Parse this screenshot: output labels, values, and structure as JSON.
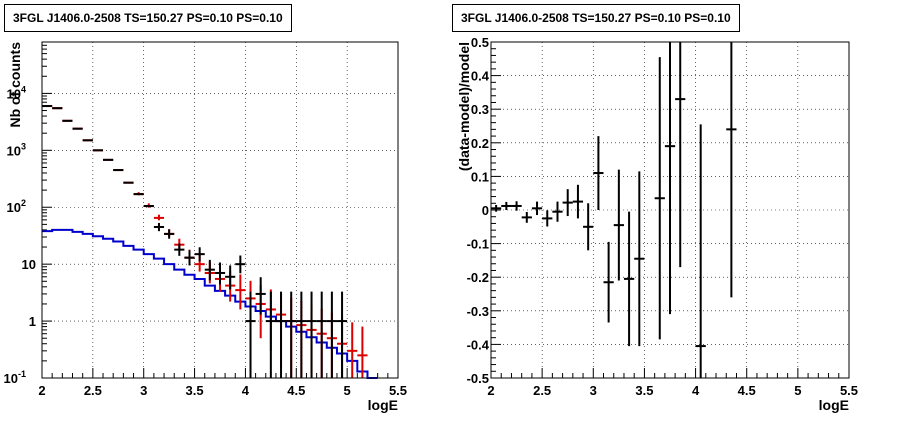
{
  "chart_data": [
    {
      "type": "line",
      "title": "3FGL J1406.0-2508 TS=150.27 PS=0.10 PS=0.10",
      "xlabel": "logE",
      "ylabel": "Nb of counts",
      "xlim": [
        2,
        5.5
      ],
      "ylim": [
        0.1,
        80000
      ],
      "yscale": "log",
      "grid": true,
      "x_ticks": [
        "2",
        "2.5",
        "3",
        "3.5",
        "4",
        "4.5",
        "5",
        "5.5"
      ],
      "y_ticks": [
        {
          "value": 0.1,
          "label": "10",
          "sup": "-1"
        },
        {
          "value": 1,
          "label": "1",
          "sup": ""
        },
        {
          "value": 10,
          "label": "10",
          "sup": ""
        },
        {
          "value": 100,
          "label": "10",
          "sup": "2"
        },
        {
          "value": 1000,
          "label": "10",
          "sup": "3"
        },
        {
          "value": 10000,
          "label": "10",
          "sup": "4"
        }
      ],
      "colors": {
        "data": "#000000",
        "model_total": "#dd0000",
        "model_source": "#0000cc"
      },
      "bin_width": 0.1,
      "series": [
        {
          "key": "source_model",
          "style": "step",
          "color": "#0000cc",
          "x": [
            2.0,
            2.1,
            2.2,
            2.3,
            2.4,
            2.5,
            2.6,
            2.7,
            2.8,
            2.9,
            3.0,
            3.1,
            3.2,
            3.3,
            3.4,
            3.5,
            3.6,
            3.7,
            3.8,
            3.9,
            4.0,
            4.1,
            4.2,
            4.3,
            4.4,
            4.5,
            4.6,
            4.7,
            4.8,
            4.9,
            5.0,
            5.1,
            5.2
          ],
          "values": [
            38,
            40,
            40,
            37,
            34,
            31,
            28,
            25,
            21,
            18,
            15,
            12.5,
            10,
            8,
            6.5,
            5.5,
            4.2,
            3.4,
            2.8,
            2.2,
            1.8,
            1.5,
            1.2,
            1.0,
            0.8,
            0.65,
            0.52,
            0.42,
            0.34,
            0.27,
            0.2,
            0.13,
            0.1
          ]
        },
        {
          "key": "total_model",
          "style": "errorbar",
          "color": "#dd0000",
          "x": [
            2.05,
            2.15,
            2.25,
            2.35,
            2.45,
            2.55,
            2.65,
            2.75,
            2.85,
            2.95,
            3.05,
            3.15,
            3.25,
            3.35,
            3.45,
            3.55,
            3.65,
            3.75,
            3.85,
            3.95,
            4.05,
            4.15,
            4.25,
            4.35,
            4.45,
            4.55,
            4.65,
            4.75,
            4.85,
            4.95,
            5.05,
            5.15
          ],
          "values": [
            6000,
            5500,
            3300,
            2400,
            1500,
            1000,
            680,
            450,
            270,
            170,
            105,
            65,
            34,
            22,
            13,
            10,
            7,
            5.5,
            4.2,
            3.5,
            2.5,
            2.0,
            1.6,
            1.3,
            1.0,
            0.85,
            0.7,
            0.6,
            0.5,
            0.4,
            0.3,
            0.25
          ],
          "err_lo": [
            0,
            0,
            0,
            0,
            0,
            0,
            0,
            0,
            0,
            8,
            7,
            6,
            4,
            3.5,
            3,
            2.6,
            2.4,
            2.2,
            2.0,
            1.9,
            1.7,
            1.5,
            1.3,
            1.15,
            0.9,
            0.75,
            0.6,
            0.52,
            0.44,
            0.36,
            0.27,
            0.22
          ],
          "err_hi": [
            0,
            0,
            0,
            0,
            0,
            0,
            0,
            0,
            0,
            14,
            12,
            9,
            7,
            6,
            5,
            4.5,
            4,
            3.6,
            3.3,
            3.1,
            2.6,
            2.3,
            2.0,
            1.8,
            1.6,
            1.4,
            1.2,
            1.05,
            0.9,
            0.8,
            0.65,
            0.55
          ]
        },
        {
          "key": "data",
          "style": "errorbar",
          "color": "#000000",
          "x": [
            2.05,
            2.15,
            2.25,
            2.35,
            2.45,
            2.55,
            2.65,
            2.75,
            2.85,
            2.95,
            3.05,
            3.15,
            3.25,
            3.35,
            3.45,
            3.55,
            3.65,
            3.75,
            3.85,
            3.95,
            4.05,
            4.15,
            4.25,
            4.35,
            4.45,
            4.55,
            4.65,
            4.75,
            4.85,
            4.95
          ],
          "values": [
            6000,
            5500,
            3300,
            2400,
            1500,
            1000,
            680,
            450,
            270,
            170,
            105,
            45,
            34,
            18,
            13,
            15,
            8,
            7,
            6,
            10,
            1,
            3,
            1,
            1,
            1,
            1,
            1,
            1,
            1,
            1
          ],
          "err_lo": [
            0,
            0,
            0,
            0,
            0,
            0,
            0,
            0,
            0,
            0,
            0,
            7,
            6,
            4,
            3.5,
            3.8,
            2.8,
            2.6,
            2.4,
            3.1,
            0.9,
            1.7,
            0.9,
            0.9,
            0.9,
            0.9,
            0.9,
            0.9,
            0.9,
            0.9
          ],
          "err_hi": [
            0,
            0,
            0,
            0,
            0,
            0,
            0,
            0,
            0,
            0,
            0,
            8,
            7,
            5,
            4.5,
            4.8,
            3.9,
            3.7,
            3.5,
            4.2,
            2.3,
            2.9,
            2.3,
            2.3,
            2.3,
            2.3,
            2.3,
            2.3,
            2.3,
            2.3
          ]
        }
      ]
    },
    {
      "type": "scatter",
      "title": "3FGL J1406.0-2508 TS=150.27 PS=0.10 PS=0.10",
      "xlabel": "logE",
      "ylabel": "(data-model)/model",
      "xlim": [
        2,
        5.5
      ],
      "ylim": [
        -0.5,
        0.5
      ],
      "grid": true,
      "x_ticks": [
        "2",
        "2.5",
        "3",
        "3.5",
        "4",
        "4.5",
        "5",
        "5.5"
      ],
      "y_ticks": [
        "0.5",
        "0.4",
        "0.3",
        "0.2",
        "0.1",
        "0",
        "-0.1",
        "-0.2",
        "-0.3",
        "-0.4",
        "-0.5"
      ],
      "y_tick_values": [
        0.5,
        0.4,
        0.3,
        0.2,
        0.1,
        0,
        -0.1,
        -0.2,
        -0.3,
        -0.4,
        -0.5
      ],
      "bin_width": 0.1,
      "series": [
        {
          "key": "residuals",
          "color": "#000000",
          "x": [
            2.05,
            2.15,
            2.25,
            2.35,
            2.45,
            2.55,
            2.65,
            2.75,
            2.85,
            2.95,
            3.05,
            3.15,
            3.25,
            3.35,
            3.45,
            3.65,
            3.75,
            3.85,
            4.05,
            4.35
          ],
          "values": [
            0.005,
            0.012,
            0.012,
            -0.022,
            0.005,
            -0.025,
            -0.005,
            0.022,
            0.025,
            -0.05,
            0.11,
            -0.215,
            -0.045,
            -0.205,
            -0.145,
            0.035,
            0.19,
            0.33,
            -0.405,
            0.24
          ],
          "err": [
            0.01,
            0.012,
            0.014,
            0.016,
            0.02,
            0.024,
            0.03,
            0.04,
            0.05,
            0.07,
            0.11,
            0.12,
            0.165,
            0.2,
            0.26,
            0.42,
            0.5,
            0.5,
            0.66,
            0.5
          ]
        }
      ]
    }
  ]
}
